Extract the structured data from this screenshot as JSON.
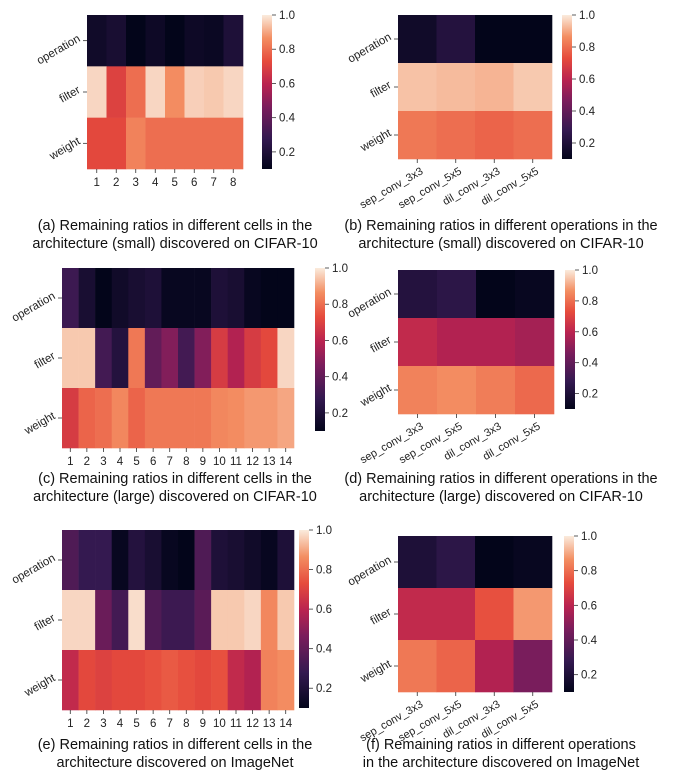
{
  "chart_data": [
    {
      "type": "heatmap",
      "panel": "a",
      "x_labels": [
        "1",
        "2",
        "3",
        "4",
        "5",
        "6",
        "7",
        "8"
      ],
      "y_labels": [
        "operation",
        "filter",
        "weight"
      ],
      "values": [
        [
          0.15,
          0.18,
          0.1,
          0.14,
          0.1,
          0.14,
          0.13,
          0.2
        ],
        [
          0.97,
          0.7,
          0.8,
          0.97,
          0.86,
          0.96,
          0.95,
          0.97
        ],
        [
          0.72,
          0.72,
          0.84,
          0.8,
          0.8,
          0.8,
          0.8,
          0.8
        ]
      ],
      "colorbar": {
        "min": 0.1,
        "max": 1.0,
        "ticks": [
          "0.2",
          "0.4",
          "0.6",
          "0.8",
          "1.0"
        ]
      },
      "caption": [
        "(a) Remaining ratios in different cells in the",
        "architecture (small) discovered on CIFAR-10"
      ]
    },
    {
      "type": "heatmap",
      "panel": "b",
      "x_labels": [
        "sep_conv_3x3",
        "sep_conv_5x5",
        "dil_conv_3x3",
        "dil_conv_5x5"
      ],
      "y_labels": [
        "operation",
        "filter",
        "weight"
      ],
      "values": [
        [
          0.15,
          0.22,
          0.08,
          0.08
        ],
        [
          0.94,
          0.93,
          0.92,
          0.95
        ],
        [
          0.82,
          0.8,
          0.78,
          0.8
        ]
      ],
      "colorbar": {
        "min": 0.1,
        "max": 1.0,
        "ticks": [
          "0.2",
          "0.4",
          "0.6",
          "0.8",
          "1.0"
        ]
      },
      "caption": [
        "(b) Remaining ratios in different operations in the",
        "architecture (small) discovered on CIFAR-10"
      ]
    },
    {
      "type": "heatmap",
      "panel": "c",
      "x_labels": [
        "1",
        "2",
        "3",
        "4",
        "5",
        "6",
        "7",
        "8",
        "9",
        "10",
        "11",
        "12",
        "13",
        "14"
      ],
      "y_labels": [
        "operation",
        "filter",
        "weight"
      ],
      "values": [
        [
          0.3,
          0.18,
          0.1,
          0.15,
          0.18,
          0.2,
          0.12,
          0.12,
          0.12,
          0.2,
          0.18,
          0.12,
          0.1,
          0.1
        ],
        [
          0.95,
          0.95,
          0.32,
          0.22,
          0.82,
          0.4,
          0.48,
          0.32,
          0.48,
          0.68,
          0.58,
          0.68,
          0.72,
          0.97
        ],
        [
          0.68,
          0.78,
          0.8,
          0.85,
          0.78,
          0.82,
          0.82,
          0.82,
          0.82,
          0.85,
          0.86,
          0.88,
          0.88,
          0.9
        ]
      ],
      "colorbar": {
        "min": 0.1,
        "max": 1.0,
        "ticks": [
          "0.2",
          "0.4",
          "0.6",
          "0.8",
          "1.0"
        ]
      },
      "caption": [
        "(c) Remaining ratios in different cells in the",
        "architecture (large) discovered on CIFAR-10"
      ]
    },
    {
      "type": "heatmap",
      "panel": "d",
      "x_labels": [
        "sep_conv_3x3",
        "sep_conv_5x5",
        "dil_conv_3x3",
        "dil_conv_5x5"
      ],
      "y_labels": [
        "operation",
        "filter",
        "weight"
      ],
      "values": [
        [
          0.22,
          0.25,
          0.08,
          0.12
        ],
        [
          0.62,
          0.58,
          0.58,
          0.55
        ],
        [
          0.84,
          0.86,
          0.83,
          0.79
        ]
      ],
      "colorbar": {
        "min": 0.1,
        "max": 1.0,
        "ticks": [
          "0.2",
          "0.4",
          "0.6",
          "0.8",
          "1.0"
        ]
      },
      "caption": [
        "(d) Remaining ratios in different operations in the",
        "architecture (large) discovered on CIFAR-10"
      ]
    },
    {
      "type": "heatmap",
      "panel": "e",
      "x_labels": [
        "1",
        "2",
        "3",
        "4",
        "5",
        "6",
        "7",
        "8",
        "9",
        "10",
        "11",
        "12",
        "13",
        "14"
      ],
      "y_labels": [
        "operation",
        "filter",
        "weight"
      ],
      "values": [
        [
          0.35,
          0.28,
          0.28,
          0.12,
          0.22,
          0.18,
          0.12,
          0.1,
          0.35,
          0.2,
          0.18,
          0.15,
          0.12,
          0.2
        ],
        [
          0.97,
          0.97,
          0.42,
          0.32,
          0.98,
          0.35,
          0.3,
          0.3,
          0.38,
          0.95,
          0.95,
          0.97,
          0.85,
          0.95
        ],
        [
          0.62,
          0.72,
          0.7,
          0.72,
          0.72,
          0.74,
          0.76,
          0.74,
          0.72,
          0.74,
          0.62,
          0.58,
          0.84,
          0.86
        ]
      ],
      "colorbar": {
        "min": 0.1,
        "max": 1.0,
        "ticks": [
          "0.2",
          "0.4",
          "0.6",
          "0.8",
          "1.0"
        ]
      },
      "caption": [
        "(e) Remaining ratios in different cells in the",
        "architecture discovered on ImageNet"
      ]
    },
    {
      "type": "heatmap",
      "panel": "f",
      "x_labels": [
        "sep_conv_3x3",
        "sep_conv_5x5",
        "dil_conv_3x3",
        "dil_conv_5x5"
      ],
      "y_labels": [
        "operation",
        "filter",
        "weight"
      ],
      "values": [
        [
          0.2,
          0.25,
          0.1,
          0.12
        ],
        [
          0.62,
          0.62,
          0.74,
          0.88
        ],
        [
          0.82,
          0.78,
          0.58,
          0.46
        ]
      ],
      "colorbar": {
        "min": 0.1,
        "max": 1.0,
        "ticks": [
          "0.2",
          "0.4",
          "0.6",
          "0.8",
          "1.0"
        ]
      },
      "caption": [
        "(f) Remaining ratios in different operations",
        "in the architecture discovered on ImageNet"
      ]
    }
  ]
}
